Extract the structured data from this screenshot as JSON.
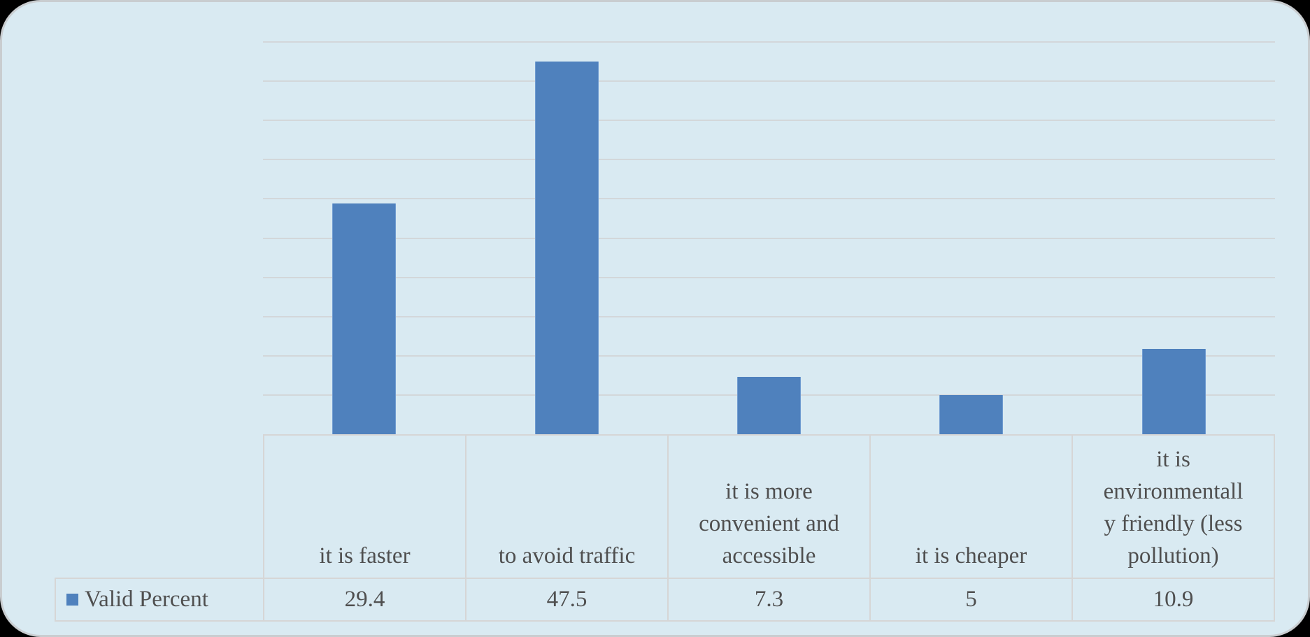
{
  "chart_data": {
    "type": "bar",
    "title": "",
    "categories": [
      "it is faster",
      "to avoid traffic",
      "it is more convenient and accessible",
      "it is cheaper",
      "it is environmentally friendly (less pollution)"
    ],
    "series": [
      {
        "name": "Valid Percent",
        "values": [
          29.4,
          47.5,
          7.3,
          5,
          10.9
        ]
      }
    ],
    "xlabel": "",
    "ylabel": "",
    "ylim": [
      0,
      50
    ],
    "gridline_step": 5,
    "grid": true,
    "legend_position": "bottom-left-of-data-table",
    "bar_color": "#4f81bd"
  },
  "data_table": {
    "legend_label": "Valid Percent",
    "legend_marker": "blue-square-icon",
    "category_cells": [
      "it is faster",
      "to avoid traffic",
      "it is more\nconvenient and\naccessible",
      "it is cheaper",
      "it is\nenvironmentall\ny friendly (less\npollution)"
    ],
    "value_cells": [
      "29.4",
      "47.5",
      "7.3",
      "5",
      "10.9"
    ]
  },
  "colors": {
    "bar": "#4f81bd",
    "panel_background": "#d9eaf2",
    "panel_rim": "#c9cdd0",
    "outside": "#000000",
    "gridline": "#d3d7da",
    "table_border": "#d6d6d6",
    "text": "#4f4f4f"
  }
}
